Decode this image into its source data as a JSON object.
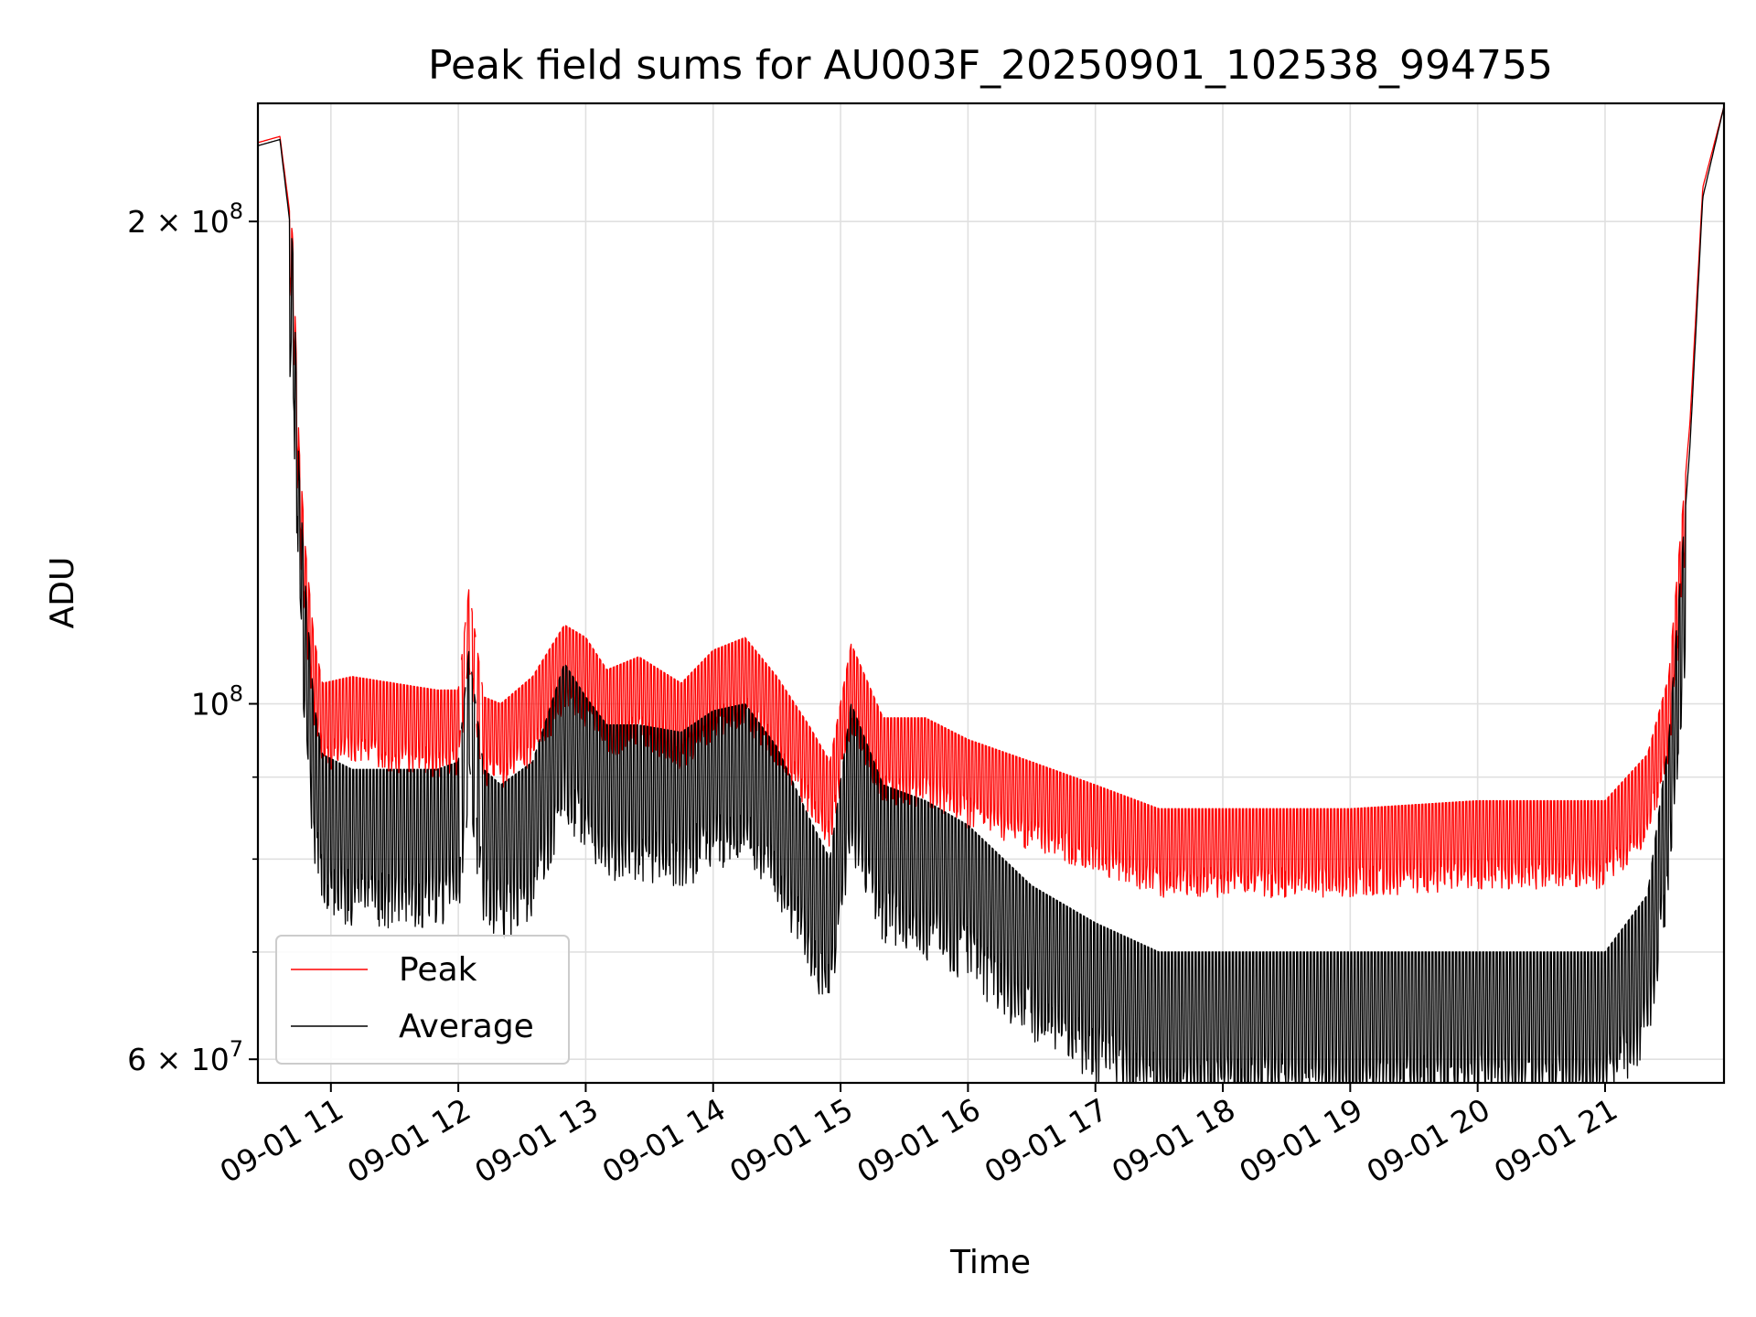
{
  "chart_data": {
    "type": "line",
    "title": "Peak field sums for AU003F_20250901_102538_994755",
    "xlabel": "Time",
    "ylabel": "ADU",
    "y_scale": "log",
    "ylim": [
      58000000,
      237000000
    ],
    "xlim": [
      "2025-09-01 10:25:38",
      "2025-09-01 21:56:00"
    ],
    "x_ticks": [
      "09-01 11",
      "09-01 12",
      "09-01 13",
      "09-01 14",
      "09-01 15",
      "09-01 16",
      "09-01 17",
      "09-01 18",
      "09-01 19",
      "09-01 20",
      "09-01 21"
    ],
    "y_ticks": [
      {
        "value": 60000000,
        "label": "6 × 10^7",
        "mant": "6",
        "exp": "7"
      },
      {
        "value": 100000000,
        "label": "10^8",
        "mant": "",
        "exp": "8"
      },
      {
        "value": 200000000,
        "label": "2 × 10^8",
        "mant": "2",
        "exp": "8"
      }
    ],
    "y_minor_grid": [
      70000000,
      80000000,
      90000000
    ],
    "grid": true,
    "legend": {
      "placement": "lower-left"
    },
    "series": [
      {
        "name": "Peak",
        "color": "#ff0000",
        "x": [
          "2025-09-01 10:25:38",
          "2025-09-01 10:36:00",
          "2025-09-01 10:42:00",
          "2025-09-01 10:45:00",
          "2025-09-01 10:48:00",
          "2025-09-01 10:52:00",
          "2025-09-01 10:56:00",
          "2025-09-01 11:10:00",
          "2025-09-01 11:30:00",
          "2025-09-01 11:50:00",
          "2025-09-01 12:00:00",
          "2025-09-01 12:05:00",
          "2025-09-01 12:12:00",
          "2025-09-01 12:20:00",
          "2025-09-01 12:35:00",
          "2025-09-01 12:50:00",
          "2025-09-01 13:00:00",
          "2025-09-01 13:10:00",
          "2025-09-01 13:25:00",
          "2025-09-01 13:45:00",
          "2025-09-01 14:00:00",
          "2025-09-01 14:15:00",
          "2025-09-01 14:30:00",
          "2025-09-01 14:45:00",
          "2025-09-01 14:55:00",
          "2025-09-01 15:05:00",
          "2025-09-01 15:20:00",
          "2025-09-01 15:40:00",
          "2025-09-01 16:00:00",
          "2025-09-01 16:30:00",
          "2025-09-01 17:00:00",
          "2025-09-01 17:30:00",
          "2025-09-01 18:00:00",
          "2025-09-01 19:00:00",
          "2025-09-01 20:00:00",
          "2025-09-01 20:30:00",
          "2025-09-01 21:00:00",
          "2025-09-01 21:20:00",
          "2025-09-01 21:30:00",
          "2025-09-01 21:40:00",
          "2025-09-01 21:46:00",
          "2025-09-01 21:56:00"
        ],
        "values": [
          224000000,
          226000000,
          196000000,
          145000000,
          125000000,
          110000000,
          103000000,
          104000000,
          103000000,
          102000000,
          102000000,
          118000000,
          101000000,
          100000000,
          104000000,
          112000000,
          110000000,
          105000000,
          107000000,
          103000000,
          108000000,
          110000000,
          104000000,
          97000000,
          92000000,
          109000000,
          98000000,
          98000000,
          95000000,
          92000000,
          89000000,
          86000000,
          86000000,
          86000000,
          87000000,
          87000000,
          87000000,
          93000000,
          104000000,
          150000000,
          210000000,
          236000000
        ]
      },
      {
        "name": "Average",
        "color": "#000000",
        "x": [
          "2025-09-01 10:25:38",
          "2025-09-01 10:36:00",
          "2025-09-01 10:42:00",
          "2025-09-01 10:45:00",
          "2025-09-01 10:48:00",
          "2025-09-01 10:52:00",
          "2025-09-01 10:56:00",
          "2025-09-01 11:10:00",
          "2025-09-01 11:30:00",
          "2025-09-01 11:50:00",
          "2025-09-01 12:00:00",
          "2025-09-01 12:05:00",
          "2025-09-01 12:12:00",
          "2025-09-01 12:20:00",
          "2025-09-01 12:35:00",
          "2025-09-01 12:50:00",
          "2025-09-01 13:00:00",
          "2025-09-01 13:10:00",
          "2025-09-01 13:25:00",
          "2025-09-01 13:45:00",
          "2025-09-01 14:00:00",
          "2025-09-01 14:15:00",
          "2025-09-01 14:30:00",
          "2025-09-01 14:45:00",
          "2025-09-01 14:55:00",
          "2025-09-01 15:05:00",
          "2025-09-01 15:20:00",
          "2025-09-01 15:40:00",
          "2025-09-01 16:00:00",
          "2025-09-01 16:30:00",
          "2025-09-01 17:00:00",
          "2025-09-01 17:30:00",
          "2025-09-01 18:00:00",
          "2025-09-01 19:00:00",
          "2025-09-01 20:00:00",
          "2025-09-01 20:30:00",
          "2025-09-01 21:00:00",
          "2025-09-01 21:20:00",
          "2025-09-01 21:30:00",
          "2025-09-01 21:40:00",
          "2025-09-01 21:46:00",
          "2025-09-01 21:56:00"
        ],
        "values": [
          223000000,
          225000000,
          193000000,
          140000000,
          118000000,
          100000000,
          93000000,
          91000000,
          91000000,
          91000000,
          92000000,
          108000000,
          91000000,
          89000000,
          92000000,
          106000000,
          101000000,
          97000000,
          97000000,
          96000000,
          99000000,
          100000000,
          94000000,
          85000000,
          80000000,
          100000000,
          89000000,
          87000000,
          84000000,
          77000000,
          73000000,
          70000000,
          70000000,
          70000000,
          70000000,
          70000000,
          70000000,
          76000000,
          95000000,
          145000000,
          207000000,
          236000000
        ]
      }
    ]
  }
}
